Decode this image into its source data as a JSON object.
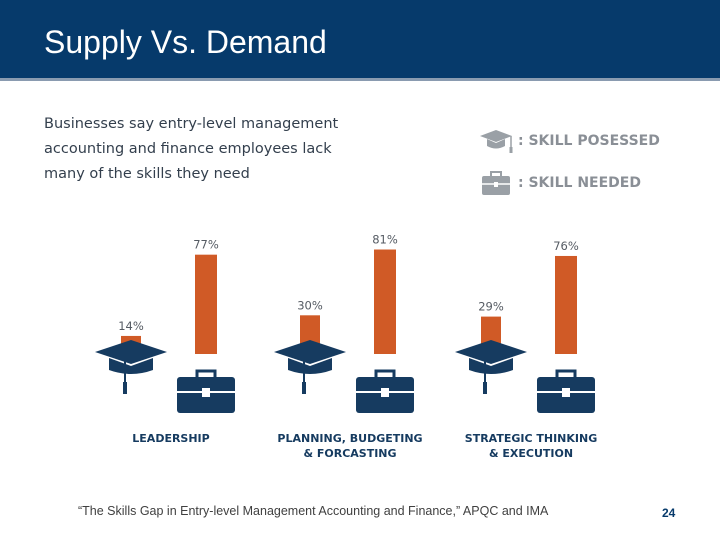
{
  "slide": {
    "title": "Supply Vs. Demand",
    "intro_lines": [
      "Businesses say entry-level management",
      "accounting and finance employees lack",
      "many of the skills they need"
    ],
    "source": "“The Skills Gap in Entry-level Management Accounting and Finance,” APQC and IMA",
    "page_number": "24"
  },
  "legend": [
    {
      "icon": "graduation-cap-icon",
      "label": ": SKILL POSESSED"
    },
    {
      "icon": "briefcase-icon",
      "label": ": SKILL NEEDED"
    }
  ],
  "colors": {
    "title_bar": "#063a6b",
    "bar": "#d05a26",
    "icon": "#163b60",
    "legend_icon": "#9aa0a6"
  },
  "chart_data": {
    "type": "bar",
    "title": "",
    "xlabel": "",
    "ylabel": "",
    "ylim": [
      0,
      85
    ],
    "categories": [
      [
        "LEADERSHIP"
      ],
      [
        "PLANNING, BUDGETING",
        "& FORCASTING"
      ],
      [
        "STRATEGIC THINKING",
        "& EXECUTION"
      ]
    ],
    "series": [
      {
        "name": "Skill possessed",
        "icon": "graduation-cap-icon",
        "values": [
          14,
          30,
          29
        ],
        "labels": [
          "14%",
          "30%",
          "29%"
        ]
      },
      {
        "name": "Skill needed",
        "icon": "briefcase-icon",
        "values": [
          77,
          81,
          76
        ],
        "labels": [
          "77%",
          "81%",
          "76%"
        ]
      }
    ]
  }
}
